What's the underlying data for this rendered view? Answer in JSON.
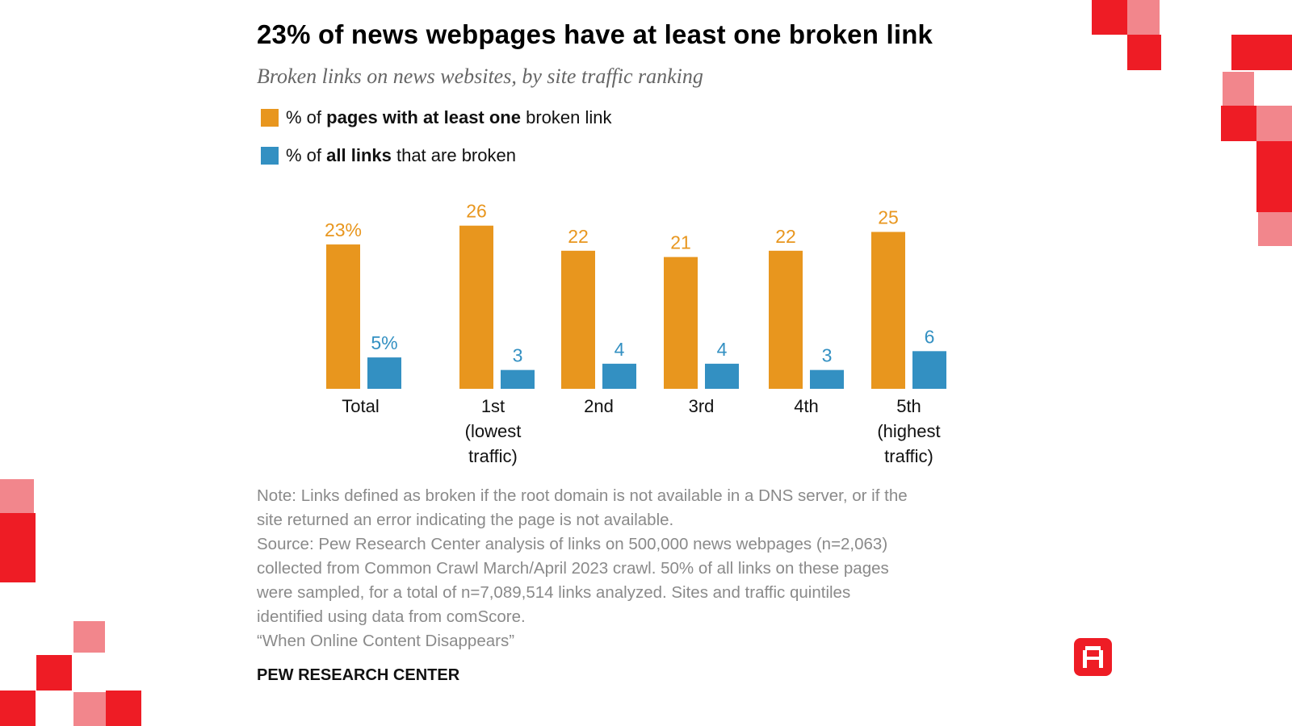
{
  "header": {
    "title": "23% of news webpages have at least one broken link",
    "subtitle": "Broken links on news websites, by site traffic ranking"
  },
  "legend": [
    {
      "prefix": "% of ",
      "bold": "pages with at least one",
      "suffix": " broken link",
      "color": "#e8961e"
    },
    {
      "prefix": "% of ",
      "bold": "all links",
      "suffix": " that are broken",
      "color": "#3390c2"
    }
  ],
  "chart_data": {
    "type": "bar",
    "title": "23% of news webpages have at least one broken link",
    "subtitle": "Broken links on news websites, by site traffic ranking",
    "xlabel": "",
    "ylabel": "",
    "ylim": [
      0,
      26
    ],
    "grid": false,
    "legend_position": "top-left",
    "categories": [
      "Total",
      "1st (lowest traffic)",
      "2nd",
      "3rd",
      "4th",
      "5th (highest traffic)"
    ],
    "category_label_lines": [
      [
        "Total"
      ],
      [
        "1st",
        "(lowest",
        "traffic)"
      ],
      [
        "2nd"
      ],
      [
        "3rd"
      ],
      [
        "4th"
      ],
      [
        "5th",
        "(highest",
        "traffic)"
      ]
    ],
    "series": [
      {
        "name": "% of pages with at least one broken link",
        "color": "#e8961e",
        "values": [
          23,
          26,
          22,
          21,
          22,
          25
        ],
        "labels": [
          "23%",
          "26",
          "22",
          "21",
          "22",
          "25"
        ]
      },
      {
        "name": "% of all links that are broken",
        "color": "#3390c2",
        "values": [
          5,
          3,
          4,
          4,
          3,
          6
        ],
        "labels": [
          "5%",
          "3",
          "4",
          "4",
          "3",
          "6"
        ]
      }
    ]
  },
  "notes": [
    "Note: Links defined as broken if the root domain is not available in a DNS server, or if the",
    "site returned an error indicating the page is not available.",
    "Source: Pew Research Center analysis of links on 500,000 news webpages (n=2,063)",
    "collected from Common Crawl March/April 2023 crawl. 50% of all links on these pages",
    "were sampled, for a total of n=7,089,514 links analyzed. Sites and traffic quintiles",
    "identified using data from comScore.",
    "“When Online Content Disappears”"
  ],
  "footer": {
    "brand": "PEW RESEARCH CENTER",
    "logo": "publisher-logo-icon"
  },
  "colors": {
    "accent_red": "#ee1c25",
    "accent_pink": "#f2868c"
  }
}
